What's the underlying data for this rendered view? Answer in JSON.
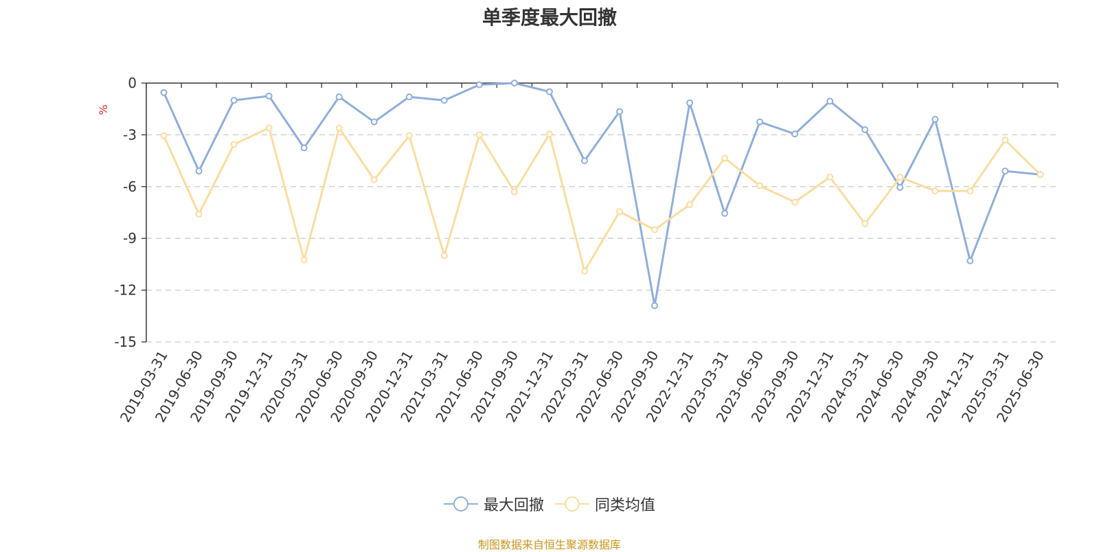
{
  "chart_data": {
    "type": "line",
    "title": "单季度最大回撤",
    "ylabel": "%",
    "ylim": [
      -15,
      0
    ],
    "yticks": [
      0,
      -3,
      -6,
      -9,
      -12,
      -15
    ],
    "grid": true,
    "legend_position": "bottom",
    "categories": [
      "2019-03-31",
      "2019-06-30",
      "2019-09-30",
      "2019-12-31",
      "2020-03-31",
      "2020-06-30",
      "2020-09-30",
      "2020-12-31",
      "2021-03-31",
      "2021-06-30",
      "2021-09-30",
      "2021-12-31",
      "2022-03-31",
      "2022-06-30",
      "2022-09-30",
      "2022-12-31",
      "2023-03-31",
      "2023-06-30",
      "2023-09-30",
      "2023-12-31",
      "2024-03-31",
      "2024-06-30",
      "2024-09-30",
      "2024-12-31",
      "2025-03-31",
      "2025-06-30"
    ],
    "series": [
      {
        "name": "最大回撤",
        "color": "#8eaedb",
        "values": [
          -0.55,
          -5.1,
          -1.0,
          -0.75,
          -3.75,
          -0.8,
          -2.25,
          -0.8,
          -1.0,
          -0.1,
          0.0,
          -0.5,
          -4.5,
          -1.65,
          -12.9,
          -1.15,
          -7.55,
          -2.25,
          -2.95,
          -1.05,
          -2.7,
          -6.05,
          -2.1,
          -10.3,
          -5.1,
          -5.3
        ]
      },
      {
        "name": "同类均值",
        "color": "#fbdc9d",
        "values": [
          -3.05,
          -7.6,
          -3.55,
          -2.6,
          -10.25,
          -2.6,
          -5.6,
          -3.05,
          -10.0,
          -3.0,
          -6.3,
          -2.95,
          -10.9,
          -7.45,
          -8.5,
          -7.05,
          -4.35,
          -5.95,
          -6.9,
          -5.45,
          -8.15,
          -5.45,
          -6.25,
          -6.25,
          -3.3,
          -5.3
        ]
      }
    ]
  },
  "legend": {
    "series1": "最大回撤",
    "series2": "同类均值"
  },
  "source_note": "制图数据来自恒生聚源数据库"
}
